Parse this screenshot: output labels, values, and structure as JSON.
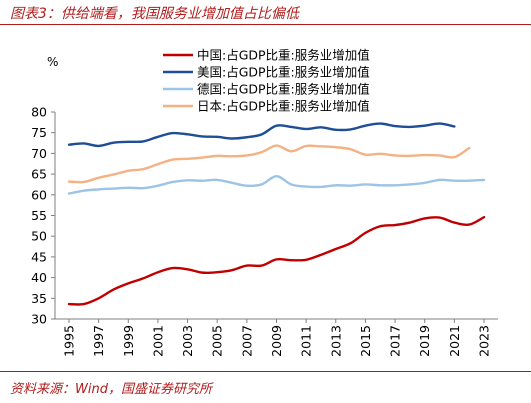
{
  "header": {
    "figure_title": "图表3：供给端看，我国服务业增加值占比偏低"
  },
  "footer": {
    "source_note": "资料来源：Wind，国盛证券研究所"
  },
  "colors": {
    "accent": "#B31B1B",
    "axis": "#7F7F7F"
  },
  "chart_data": {
    "type": "line",
    "ylabel": "%",
    "ylim": [
      30,
      80
    ],
    "yticks": [
      30,
      35,
      40,
      45,
      50,
      55,
      60,
      65,
      70,
      75,
      80
    ],
    "xlim": [
      1995,
      2023
    ],
    "xticks": [
      1995,
      1997,
      1999,
      2001,
      2003,
      2005,
      2007,
      2009,
      2011,
      2013,
      2015,
      2017,
      2019,
      2021,
      2023
    ],
    "grid": false,
    "legend_position": "top-center",
    "x": [
      1995,
      1996,
      1997,
      1998,
      1999,
      2000,
      2001,
      2002,
      2003,
      2004,
      2005,
      2006,
      2007,
      2008,
      2009,
      2010,
      2011,
      2012,
      2013,
      2014,
      2015,
      2016,
      2017,
      2018,
      2019,
      2020,
      2021,
      2022,
      2023
    ],
    "series": [
      {
        "name": "中国:占GDP比重:服务业增加值",
        "color": "#C00000",
        "values": [
          33.6,
          33.6,
          35.0,
          37.1,
          38.6,
          39.8,
          41.3,
          42.3,
          42.0,
          41.2,
          41.3,
          41.8,
          42.9,
          42.9,
          44.4,
          44.2,
          44.3,
          45.5,
          46.9,
          48.3,
          50.8,
          52.4,
          52.7,
          53.3,
          54.3,
          54.5,
          53.3,
          52.8,
          54.6
        ]
      },
      {
        "name": "美国:占GDP比重:服务业增加值",
        "color": "#1F4E96",
        "values": [
          72.1,
          72.4,
          71.8,
          72.6,
          72.8,
          72.9,
          74.0,
          74.9,
          74.6,
          74.1,
          74.0,
          73.6,
          73.9,
          74.6,
          76.7,
          76.4,
          75.9,
          76.3,
          75.7,
          75.8,
          76.7,
          77.2,
          76.6,
          76.4,
          76.7,
          77.2,
          76.5,
          null,
          null
        ]
      },
      {
        "name": "德国:占GDP比重:服务业增加值",
        "color": "#9DC3E6",
        "values": [
          60.3,
          61.0,
          61.3,
          61.5,
          61.7,
          61.6,
          62.2,
          63.1,
          63.5,
          63.4,
          63.6,
          62.9,
          62.2,
          62.5,
          64.5,
          62.5,
          62.0,
          61.9,
          62.3,
          62.2,
          62.5,
          62.3,
          62.3,
          62.5,
          62.9,
          63.6,
          63.4,
          63.4,
          63.6
        ]
      },
      {
        "name": "日本:占GDP比重:服务业增加值",
        "color": "#F4B183",
        "values": [
          63.2,
          63.1,
          64.1,
          64.9,
          65.8,
          66.2,
          67.4,
          68.5,
          68.7,
          69.0,
          69.4,
          69.3,
          69.5,
          70.3,
          71.9,
          70.5,
          71.8,
          71.7,
          71.5,
          71.0,
          69.7,
          69.9,
          69.5,
          69.4,
          69.6,
          69.5,
          69.1,
          71.3,
          null
        ]
      }
    ]
  }
}
